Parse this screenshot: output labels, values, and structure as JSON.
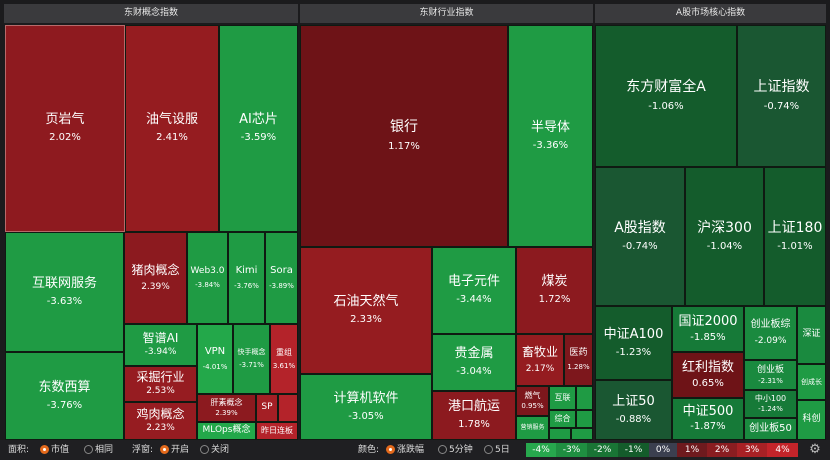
{
  "panels": {
    "concept": "东财概念指数",
    "industry": "东财行业指数",
    "core": "A股市场核心指数"
  },
  "tiles": {
    "c_yeyanqi": {
      "name": "页岩气",
      "pct": "2.02%"
    },
    "c_youqishebei": {
      "name": "油气设服",
      "pct": "2.41%"
    },
    "c_aixinpian": {
      "name": "AI芯片",
      "pct": "-3.59%"
    },
    "c_hulianwang": {
      "name": "互联网服务",
      "pct": "-3.63%"
    },
    "c_zhurou": {
      "name": "猪肉概念",
      "pct": "2.39%"
    },
    "c_web3": {
      "name": "Web3.0",
      "pct": "-3.84%"
    },
    "c_kimi": {
      "name": "Kimi",
      "pct": "-3.76%"
    },
    "c_sora": {
      "name": "Sora",
      "pct": "-3.89%"
    },
    "c_zhinengai": {
      "name": "智谱AI",
      "pct": "-3.94%"
    },
    "c_vpn": {
      "name": "VPN",
      "pct": "-4.01%"
    },
    "c_kuaishou": {
      "name": "快手概念",
      "pct": "-3.71%"
    },
    "c_chongzu": {
      "name": "重组",
      "pct": "3.61%"
    },
    "c_caijue": {
      "name": "采掘行业",
      "pct": "2.53%"
    },
    "c_shuzixisuan": {
      "name": "东数西算",
      "pct": "-3.76%"
    },
    "c_jirou": {
      "name": "鸡肉概念",
      "pct": "2.23%"
    },
    "c_gansu": {
      "name": "肝素概念",
      "pct": "2.39%"
    },
    "c_sp": {
      "name": "SP",
      "pct": ""
    },
    "c_mlops": {
      "name": "MLOps概念",
      "pct": ""
    },
    "c_zuorilianban": {
      "name": "昨日连板",
      "pct": ""
    },
    "i_yinhang": {
      "name": "银行",
      "pct": "1.17%"
    },
    "i_bandaoti": {
      "name": "半导体",
      "pct": "-3.36%"
    },
    "i_shiyou": {
      "name": "石油天然气",
      "pct": "2.33%"
    },
    "i_dianzi": {
      "name": "电子元件",
      "pct": "-3.44%"
    },
    "i_meitan": {
      "name": "煤炭",
      "pct": "1.72%"
    },
    "i_guijinshu": {
      "name": "贵金属",
      "pct": "-3.04%"
    },
    "i_xumuye": {
      "name": "畜牧业",
      "pct": "2.17%"
    },
    "i_yishi": {
      "name": "医药",
      "pct": "1.28%"
    },
    "i_jisuanji": {
      "name": "计算机软件",
      "pct": "-3.05%"
    },
    "i_gangkou": {
      "name": "港口航运",
      "pct": "1.78%"
    },
    "i_ranqi": {
      "name": "燃气",
      "pct": "0.95%"
    },
    "i_zonghe": {
      "name": "综合",
      "pct": ""
    },
    "i_hulian": {
      "name": "互联",
      "pct": ""
    },
    "i_yingxiao": {
      "name": "营销服务",
      "pct": ""
    },
    "k_dongfangcaifu": {
      "name": "东方财富全A",
      "pct": "-1.06%"
    },
    "k_shangzheng": {
      "name": "上证指数",
      "pct": "-0.74%"
    },
    "k_agu": {
      "name": "A股指数",
      "pct": "-0.74%"
    },
    "k_hs300": {
      "name": "沪深300",
      "pct": "-1.04%"
    },
    "k_sz180": {
      "name": "上证180",
      "pct": "-1.01%"
    },
    "k_zza100": {
      "name": "中证A100",
      "pct": "-1.23%"
    },
    "k_zz2000": {
      "name": "国证2000",
      "pct": "-1.85%"
    },
    "k_cybz": {
      "name": "创业板综",
      "pct": "-2.09%"
    },
    "k_shenzheng": {
      "name": "深证",
      "pct": ""
    },
    "k_hongli": {
      "name": "红利指数",
      "pct": "0.65%"
    },
    "k_cyb": {
      "name": "创业板",
      "pct": "-2.31%"
    },
    "k_chuangcheng": {
      "name": "创成长",
      "pct": ""
    },
    "k_sz50": {
      "name": "上证50",
      "pct": "-0.88%"
    },
    "k_zz500": {
      "name": "中证500",
      "pct": "-1.87%"
    },
    "k_zx100": {
      "name": "中小100",
      "pct": "-1.24%"
    },
    "k_kechuang": {
      "name": "科创",
      "pct": ""
    },
    "k_cyb50": {
      "name": "创业板50",
      "pct": ""
    }
  },
  "toolbar": {
    "area_label": "面积:",
    "area_opt1": "市值",
    "area_opt2": "相同",
    "float_label": "浮窗:",
    "float_opt1": "开启",
    "float_opt2": "关闭",
    "color_label": "颜色:",
    "color_opt1": "涨跌幅",
    "color_opt2": "5分钟",
    "color_opt3": "5日",
    "legend": [
      "-4%",
      "-3%",
      "-2%",
      "-1%",
      "0%",
      "1%",
      "2%",
      "3%",
      "4%"
    ],
    "area_selected": "市值",
    "float_selected": "开启",
    "color_selected": "涨跌幅",
    "settings_icon": "gear-icon"
  },
  "colors": {
    "red_dark": "#6e1116",
    "red": "#9b1e22",
    "green": "#1e9a45",
    "green_dark": "#125a2c",
    "legend": [
      "#27a84d",
      "#1f8f41",
      "#197535",
      "#145c2b",
      "#3b3f4f",
      "#6e1a1e",
      "#8a1d21",
      "#a82125",
      "#c4242a"
    ]
  }
}
